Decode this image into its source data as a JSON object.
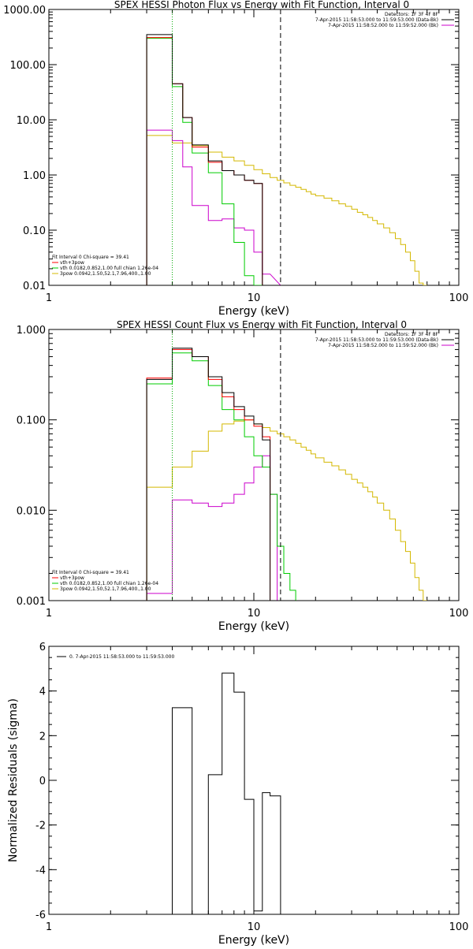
{
  "chart_data": [
    {
      "type": "line",
      "title": "SPEX HESSI Photon Flux vs Energy with Fit Function, Interval 0",
      "xlabel": "Energy (keV)",
      "ylabel": "",
      "xscale": "log",
      "yscale": "log",
      "xlim": [
        1,
        100
      ],
      "ylim": [
        0.01,
        1000
      ],
      "xticks": [
        1,
        10,
        100
      ],
      "xtick_labels": [
        "1",
        "10",
        "100"
      ],
      "yticks": [
        0.01,
        0.1,
        1,
        10,
        100,
        1000
      ],
      "ytick_labels": [
        "0.01",
        "0.10",
        "1.00",
        "10.00",
        "100.00",
        "1000.00"
      ],
      "legend_top": [
        "Detectors: 1F 3F 4F 8F",
        "7-Apr-2015 11:58:53.000 to 11:59:53.000 (Data-Bk)",
        "7-Apr-2015 11:58:52.000 to 11:59:52.000 (Bk)"
      ],
      "legend_top_colors": [
        "#000000",
        "#000000",
        "#cc00cc"
      ],
      "legend_bottom": [
        "Fit Interval 0   Chi-square = 39.41",
        "vth+3pow",
        "vth 0.0182,0.852,1.00  full chian 1.26e-04",
        "3pow 0.0942,1.50,52.1,7.96,400.,1.00"
      ],
      "legend_bottom_colors": [
        "#000000",
        "#ff0000",
        "#00cc00",
        "#d4b800"
      ],
      "edges": [
        3.0,
        4.0,
        4.5,
        5.0,
        6.0,
        7.0,
        8.0,
        9.0,
        10.0,
        11.0,
        12.0,
        13.5
      ],
      "series": [
        {
          "name": "Data-Bk",
          "color": "#000000",
          "values": [
            350,
            45,
            11,
            3.5,
            1.8,
            1.2,
            1.0,
            0.8,
            0.7,
            0.01
          ]
        },
        {
          "name": "vth+3pow",
          "color": "#ff0000",
          "values": [
            310,
            45,
            11,
            3.2,
            1.7,
            1.2,
            1.0,
            0.8,
            0.7,
            0.01
          ]
        },
        {
          "name": "vth",
          "color": "#00cc00",
          "values": [
            300,
            40,
            9,
            2.5,
            1.1,
            0.3,
            0.06,
            0.015,
            0.01,
            0.01
          ]
        },
        {
          "name": "Bk",
          "color": "#cc00cc",
          "values": [
            6.5,
            4.2,
            1.4,
            0.28,
            0.15,
            0.16,
            0.11,
            0.1,
            0.04,
            0.016
          ]
        }
      ],
      "yellow_edges": [
        3.0,
        4.0,
        5.0,
        6.0,
        7.0,
        8.0,
        9.0,
        10.0,
        11.0,
        12.0,
        13.0,
        14.0,
        15.0,
        16.0,
        17.0,
        18.0,
        19.0,
        20.0,
        22.0,
        24.0,
        26.0,
        28.0,
        30.0,
        32.0,
        34.0,
        36.0,
        38.0,
        40.0,
        43.0,
        46.0,
        49.0,
        52.0,
        55.0,
        58.0,
        61.0,
        64.0,
        67.0,
        70.0
      ],
      "yellow_values": [
        5.2,
        3.8,
        3.4,
        2.6,
        2.1,
        1.8,
        1.5,
        1.25,
        1.05,
        0.9,
        0.8,
        0.72,
        0.65,
        0.6,
        0.55,
        0.5,
        0.45,
        0.42,
        0.38,
        0.34,
        0.3,
        0.27,
        0.24,
        0.21,
        0.19,
        0.17,
        0.15,
        0.13,
        0.11,
        0.09,
        0.07,
        0.055,
        0.04,
        0.028,
        0.018,
        0.011,
        0.005
      ],
      "vlines": [
        4.0,
        13.5
      ]
    },
    {
      "type": "line",
      "title": "SPEX HESSI Count Flux vs Energy with Fit Function, Interval 0",
      "xlabel": "Energy (keV)",
      "ylabel": "",
      "xscale": "log",
      "yscale": "log",
      "xlim": [
        1,
        100
      ],
      "ylim": [
        0.001,
        1
      ],
      "xticks": [
        1,
        10,
        100
      ],
      "xtick_labels": [
        "1",
        "10",
        "100"
      ],
      "yticks": [
        0.001,
        0.01,
        0.1,
        1
      ],
      "ytick_labels": [
        "0.001",
        "0.010",
        "0.100",
        "1.000"
      ],
      "legend_top": [
        "Detectors: 1F 3F 4F 8F",
        "7-Apr-2015 11:58:53.000 to 11:59:53.000 (Data-Bk)",
        "7-Apr-2015 11:58:52.000 to 11:59:52.000 (Bk)"
      ],
      "legend_top_colors": [
        "#000000",
        "#000000",
        "#cc00cc"
      ],
      "legend_bottom": [
        "Fit Interval 0   Chi-square = 39.41",
        "vth+3pow",
        "vth 0.0182,0.852,1.00  full chian 1.26e-04",
        "3pow 0.0942,1.50,52.1,7.96,400.,1.00"
      ],
      "legend_bottom_colors": [
        "#000000",
        "#ff0000",
        "#00cc00",
        "#d4b800"
      ],
      "edges": [
        3.0,
        4.0,
        5.0,
        6.0,
        7.0,
        8.0,
        9.0,
        10.0,
        11.0,
        12.0,
        13.0,
        14.0,
        15.0,
        16.0
      ],
      "series": [
        {
          "name": "Data-Bk",
          "color": "#000000",
          "values": [
            0.28,
            0.62,
            0.5,
            0.3,
            0.2,
            0.14,
            0.11,
            0.09,
            0.06,
            0.001,
            0.001,
            0.001,
            0.001
          ]
        },
        {
          "name": "vth+3pow",
          "color": "#ff0000",
          "values": [
            0.29,
            0.6,
            0.5,
            0.28,
            0.18,
            0.13,
            0.1,
            0.085,
            0.065,
            0.001,
            0.001,
            0.001,
            0.001
          ]
        },
        {
          "name": "vth",
          "color": "#00cc00",
          "values": [
            0.25,
            0.55,
            0.45,
            0.24,
            0.13,
            0.1,
            0.065,
            0.04,
            0.03,
            0.015,
            0.004,
            0.002,
            0.0013
          ]
        },
        {
          "name": "Bk",
          "color": "#cc00cc",
          "values": [
            0.0012,
            0.013,
            0.012,
            0.011,
            0.012,
            0.015,
            0.02,
            0.03,
            0.04,
            0.015,
            0.001,
            0.001,
            0.001
          ]
        }
      ],
      "yellow_edges": [
        3.0,
        4.0,
        5.0,
        6.0,
        7.0,
        8.0,
        9.0,
        10.0,
        11.0,
        12.0,
        13.0,
        14.0,
        15.0,
        16.0,
        17.0,
        18.0,
        19.0,
        20.0,
        22.0,
        24.0,
        26.0,
        28.0,
        30.0,
        32.0,
        34.0,
        36.0,
        38.0,
        40.0,
        43.0,
        46.0,
        49.0,
        52.0,
        55.0,
        58.0,
        61.0,
        64.0,
        67.0,
        70.0
      ],
      "yellow_values": [
        0.018,
        0.03,
        0.045,
        0.075,
        0.09,
        0.097,
        0.1,
        0.09,
        0.082,
        0.075,
        0.07,
        0.065,
        0.06,
        0.055,
        0.05,
        0.046,
        0.042,
        0.038,
        0.034,
        0.031,
        0.028,
        0.025,
        0.022,
        0.02,
        0.018,
        0.016,
        0.014,
        0.012,
        0.01,
        0.008,
        0.006,
        0.0045,
        0.0035,
        0.0026,
        0.0018,
        0.0013,
        0.001
      ],
      "vlines": [
        4.0,
        13.5
      ]
    },
    {
      "type": "line",
      "title": "",
      "xlabel": "Energy (keV)",
      "ylabel": "Normalized Residuals (sigma)",
      "xscale": "log",
      "yscale": "linear",
      "xlim": [
        1,
        100
      ],
      "ylim": [
        -6,
        6
      ],
      "xticks": [
        1,
        10,
        100
      ],
      "xtick_labels": [
        "1",
        "10",
        "100"
      ],
      "yticks": [
        -6,
        -4,
        -2,
        0,
        2,
        4,
        6
      ],
      "ytick_labels": [
        "-6",
        "-4",
        "-2",
        "0",
        "2",
        "4",
        "6"
      ],
      "legend_top": [
        "0.  7-Apr-2015 11:58:53.000 to 11:59:53.000"
      ],
      "edges": [
        4.0,
        5.0,
        6.0,
        7.0,
        8.0,
        9.0,
        10.0,
        11.0,
        12.0,
        13.5
      ],
      "series": [
        {
          "name": "0.  7-Apr-2015 11:58:53.000 to 11:59:53.000",
          "color": "#000000",
          "values": [
            3.25,
            -6.2,
            0.25,
            4.8,
            3.95,
            -0.85,
            -5.85,
            -0.55,
            -0.7
          ]
        }
      ]
    }
  ]
}
